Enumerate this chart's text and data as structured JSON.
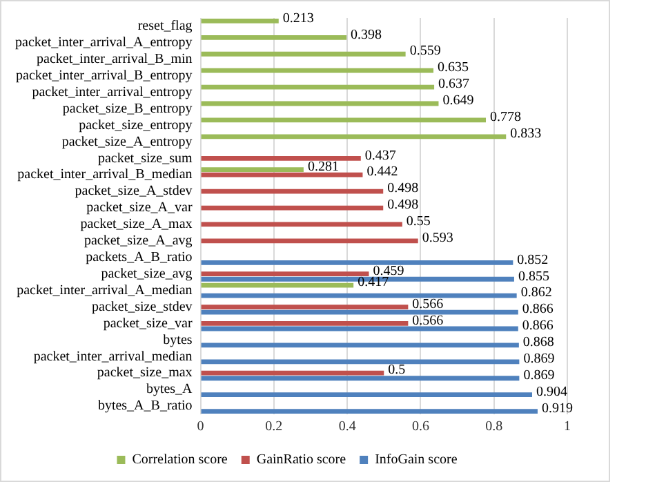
{
  "chart_data": {
    "type": "bar",
    "orientation": "horizontal",
    "categories": [
      "reset_flag",
      "packet_inter_arrival_A_entropy",
      "packet_inter_arrival_B_min",
      "packet_inter_arrival_B_entropy",
      "packet_inter_arrival_entropy",
      "packet_size_B_entropy",
      "packet_size_entropy",
      "packet_size_A_entropy",
      "packet_size_sum",
      "packet_inter_arrival_B_median",
      "packet_size_A_stdev",
      "packet_size_A_var",
      "packet_size_A_max",
      "packet_size_A_avg",
      "packets_A_B_ratio",
      "packet_size_avg",
      "packet_inter_arrival_A_median",
      "packet_size_stdev",
      "packet_size_var",
      "bytes",
      "packet_inter_arrival_median",
      "packet_size_max",
      "bytes_A",
      "bytes_A_B_ratio"
    ],
    "series": [
      {
        "name": "Correlation score",
        "color": "#9bbb59",
        "values": [
          0.213,
          0.398,
          0.559,
          0.635,
          0.637,
          0.649,
          0.778,
          0.833,
          null,
          0.281,
          null,
          null,
          null,
          null,
          null,
          null,
          0.417,
          null,
          null,
          null,
          null,
          null,
          null,
          null
        ]
      },
      {
        "name": "GainRatio score",
        "color": "#c0504d",
        "values": [
          null,
          null,
          null,
          null,
          null,
          null,
          null,
          null,
          0.437,
          0.442,
          0.498,
          0.498,
          0.55,
          0.593,
          null,
          0.459,
          null,
          0.566,
          0.566,
          null,
          null,
          0.5,
          null,
          null
        ]
      },
      {
        "name": "InfoGain score",
        "color": "#4f81bd",
        "values": [
          null,
          null,
          null,
          null,
          null,
          null,
          null,
          null,
          null,
          null,
          null,
          null,
          null,
          null,
          0.852,
          0.855,
          0.862,
          0.866,
          0.866,
          0.868,
          0.869,
          0.869,
          0.904,
          0.919
        ]
      }
    ],
    "xlim": [
      0,
      1
    ],
    "xticks": [
      0,
      0.2,
      0.4,
      0.6,
      0.8,
      1
    ],
    "grid": "x",
    "legend": "bottom",
    "data_labels": true
  }
}
